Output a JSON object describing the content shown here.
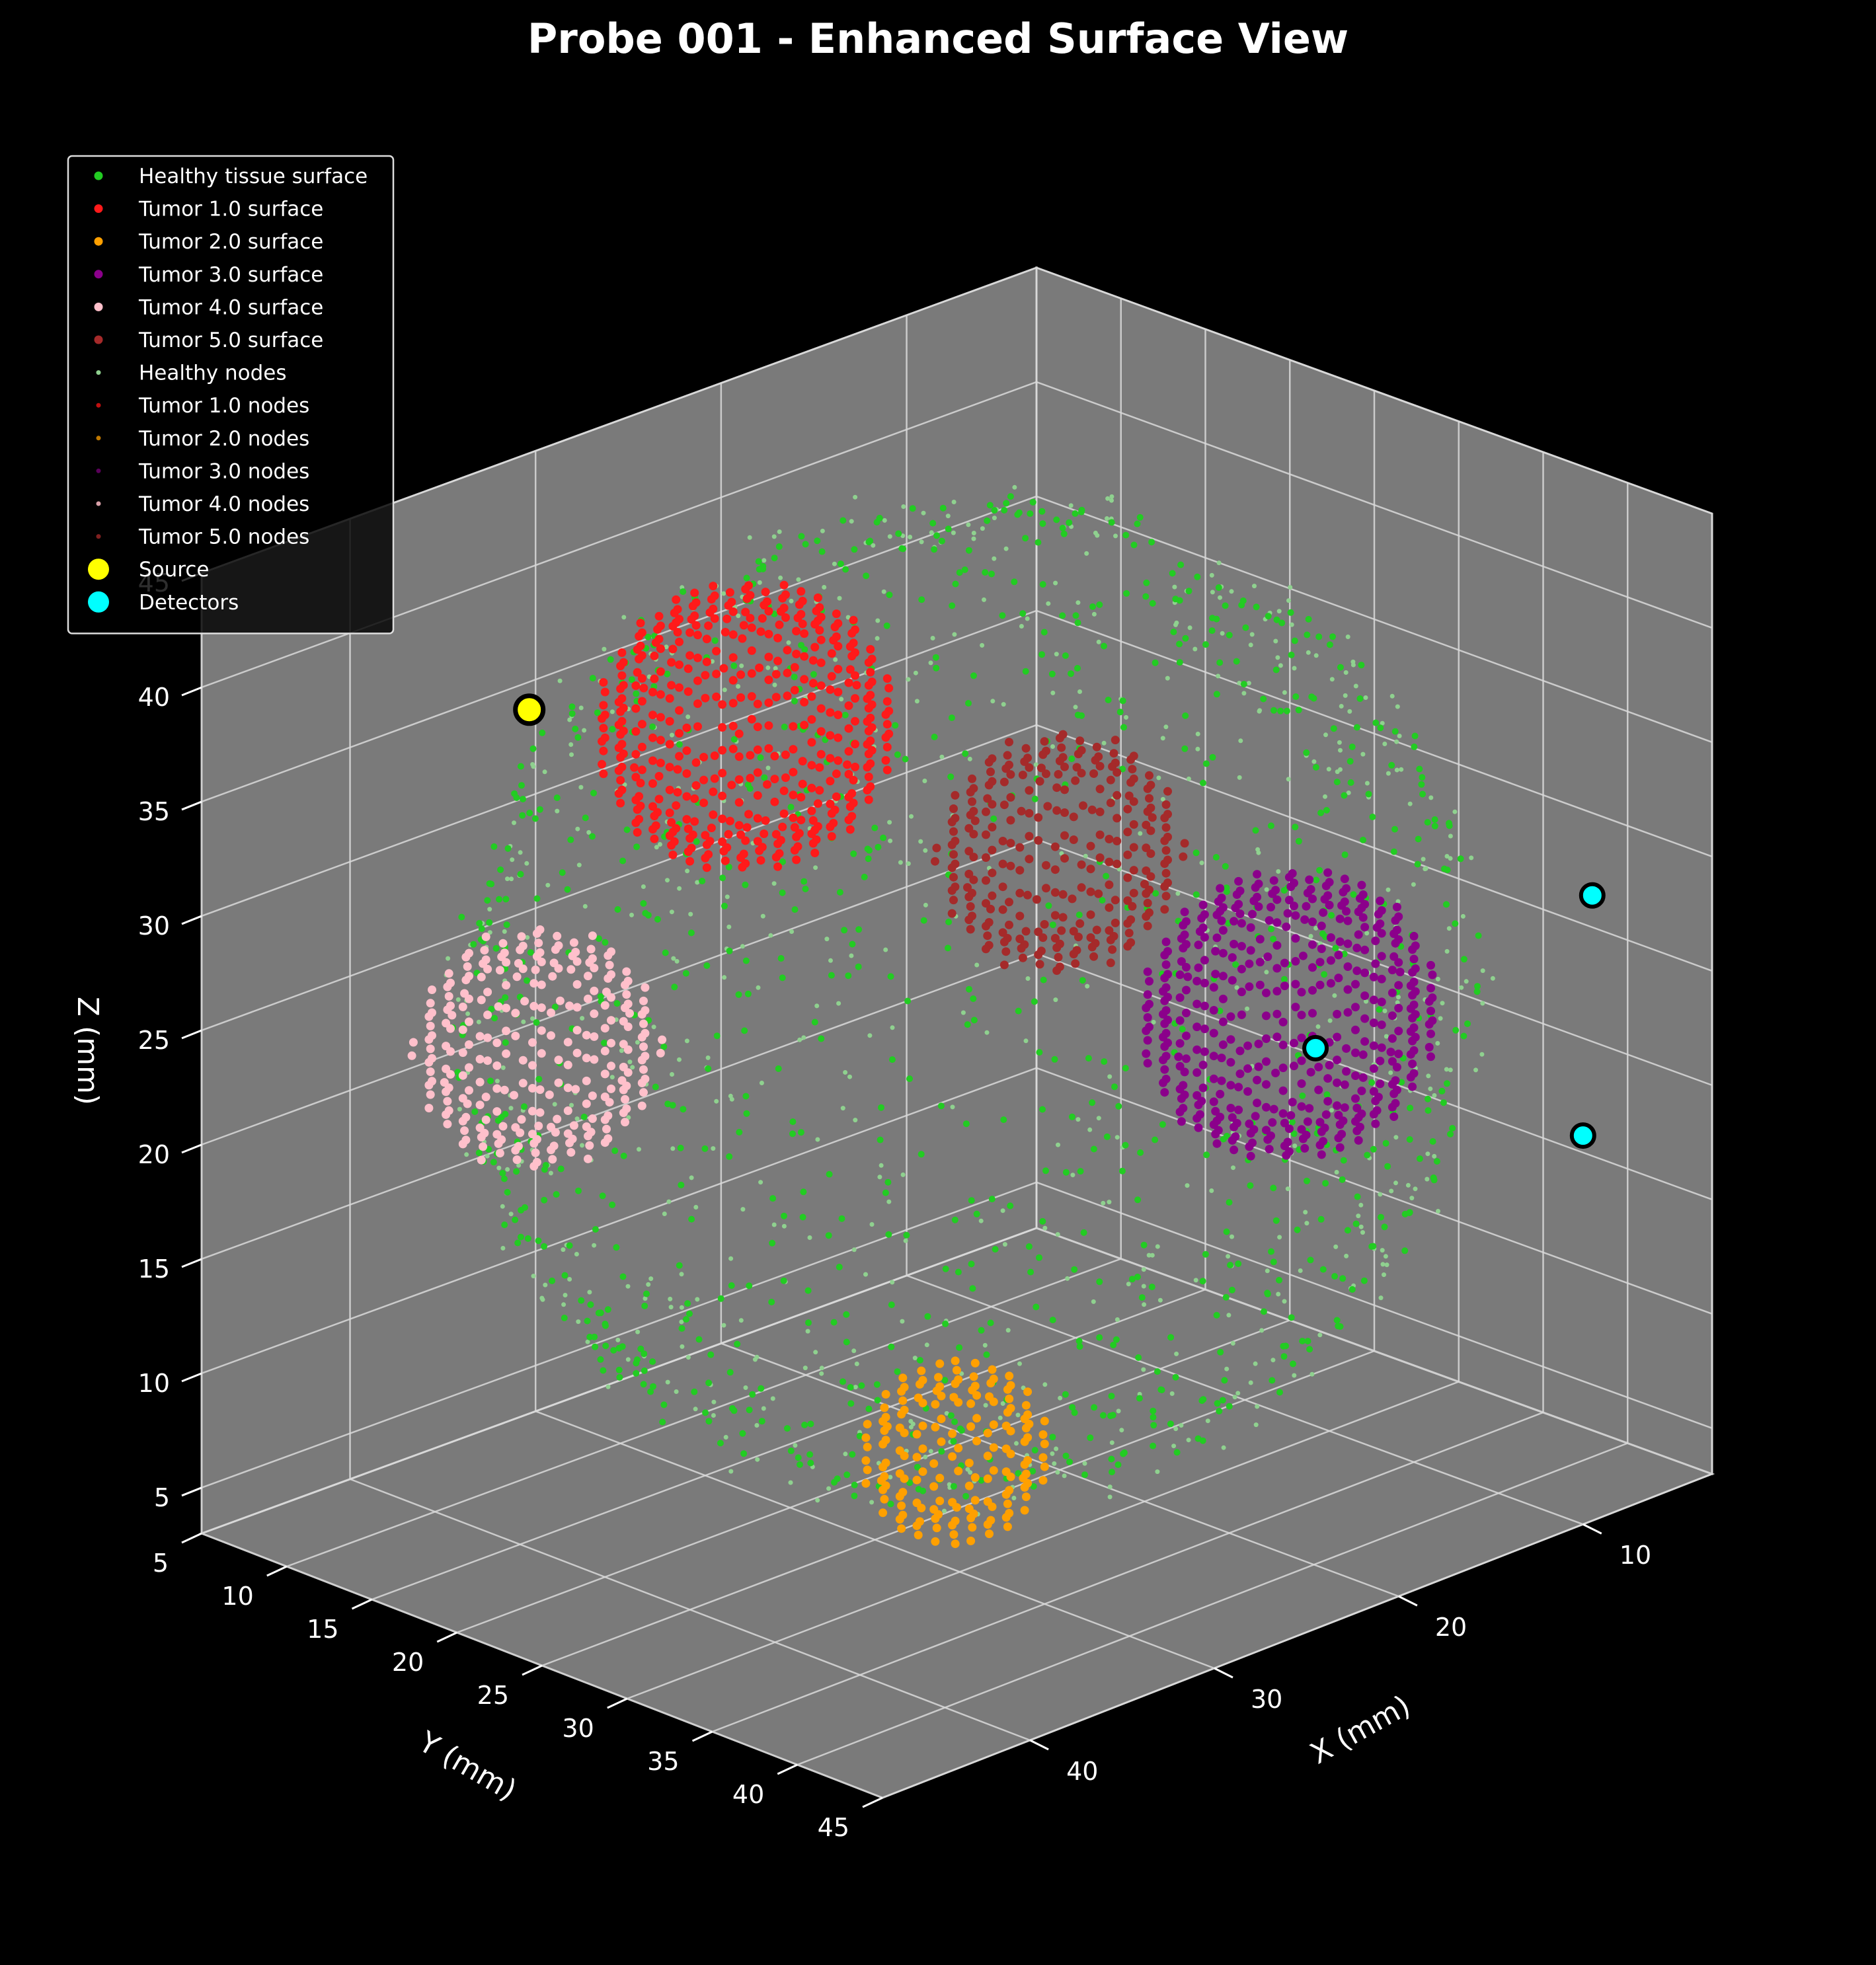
{
  "chart_data": {
    "type": "scatter3d",
    "title": "Probe 001 - Enhanced Surface View",
    "xlabel": "X (mm)",
    "ylabel": "Y (mm)",
    "zlabel": "Z (mm)",
    "xlim": [
      3,
      48
    ],
    "ylim": [
      5,
      45
    ],
    "zlim": [
      3,
      45
    ],
    "x_ticks": [
      10,
      20,
      30,
      40
    ],
    "y_ticks": [
      5,
      10,
      15,
      20,
      25,
      30,
      35,
      40,
      45
    ],
    "z_ticks": [
      5,
      10,
      15,
      20,
      25,
      30,
      35,
      40,
      45
    ],
    "grid": true,
    "pane_color": "#7a7a7a",
    "background": "#000000",
    "legend": {
      "position": "top-left",
      "entries": [
        {
          "label": "Healthy tissue surface",
          "color": "#22cc22",
          "marker": "dot"
        },
        {
          "label": "Tumor 1.0 surface",
          "color": "#ff1a1a",
          "marker": "dot"
        },
        {
          "label": "Tumor 2.0 surface",
          "color": "#ffa000",
          "marker": "dot"
        },
        {
          "label": "Tumor 3.0 surface",
          "color": "#8b008b",
          "marker": "dot"
        },
        {
          "label": "Tumor 4.0 surface",
          "color": "#ffc0cb",
          "marker": "dot"
        },
        {
          "label": "Tumor 5.0 surface",
          "color": "#a52a2a",
          "marker": "dot"
        },
        {
          "label": "Healthy nodes",
          "color": "#8fd18f",
          "marker": "small"
        },
        {
          "label": "Tumor 1.0 nodes",
          "color": "#c01010",
          "marker": "small"
        },
        {
          "label": "Tumor 2.0 nodes",
          "color": "#c07800",
          "marker": "small"
        },
        {
          "label": "Tumor 3.0 nodes",
          "color": "#5a005a",
          "marker": "small"
        },
        {
          "label": "Tumor 4.0 nodes",
          "color": "#d8a0a8",
          "marker": "small"
        },
        {
          "label": "Tumor 5.0 nodes",
          "color": "#802020",
          "marker": "small"
        },
        {
          "label": "Source",
          "color": "#ffff00",
          "marker": "big"
        },
        {
          "label": "Detectors",
          "color": "#00ffff",
          "marker": "big"
        }
      ]
    },
    "healthy_sphere": {
      "center": [
        25,
        25,
        25
      ],
      "radius": 20
    },
    "tumors": [
      {
        "name": "Tumor 1.0",
        "center": [
          26,
          13,
          34
        ],
        "radius": 6
      },
      {
        "name": "Tumor 2.0",
        "center": [
          33,
          33,
          10
        ],
        "radius": 4
      },
      {
        "name": "Tumor 3.0",
        "center": [
          14,
          32,
          23
        ],
        "radius": 6
      },
      {
        "name": "Tumor 4.0",
        "center": [
          40,
          16,
          25
        ],
        "radius": 5
      },
      {
        "name": "Tumor 5.0",
        "center": [
          20,
          25,
          30
        ],
        "radius": 5
      }
    ],
    "source": [
      34,
      9,
      36
    ],
    "detectors": [
      [
        19,
        39,
        25
      ],
      [
        10,
        45,
        20
      ],
      [
        4,
        39,
        27
      ]
    ]
  }
}
